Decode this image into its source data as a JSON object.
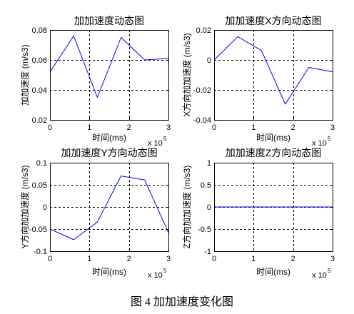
{
  "figure": {
    "caption": "图 4 加加速度变化图"
  },
  "colors": {
    "background": "#ffffff",
    "axes": "#000000",
    "grid": "#000000",
    "line": "#0000ff"
  },
  "chart_data": [
    {
      "type": "line",
      "title": "加加速度动态图",
      "xlabel": "时间(ms)",
      "ylabel": "加加速度 (m/s3)",
      "x_multiplier": {
        "base": "x 10",
        "exponent": "5"
      },
      "xlim": [
        0,
        300000
      ],
      "ylim": [
        0.02,
        0.08
      ],
      "xticks": [
        0,
        100000,
        200000,
        300000
      ],
      "xtick_labels": [
        "0",
        "1",
        "2",
        "3"
      ],
      "yticks": [
        0.02,
        0.04,
        0.06,
        0.08
      ],
      "ytick_labels": [
        "0.02",
        "0.04",
        "0.06",
        "0.08"
      ],
      "grid": true,
      "series": [
        {
          "x": [
            0,
            60000,
            120000,
            180000,
            240000,
            300000
          ],
          "y": [
            0.052,
            0.076,
            0.035,
            0.075,
            0.06,
            0.061
          ],
          "color": "#0000ff"
        }
      ]
    },
    {
      "type": "line",
      "title": "加加速度X方向动态图",
      "xlabel": "时间(ms)",
      "ylabel": "X方向加加速度 (m/s3)",
      "x_multiplier": {
        "base": "x 10",
        "exponent": "5"
      },
      "xlim": [
        0,
        300000
      ],
      "ylim": [
        -0.04,
        0.02
      ],
      "xticks": [
        0,
        100000,
        200000,
        300000
      ],
      "xtick_labels": [
        "0",
        "1",
        "2",
        "3"
      ],
      "yticks": [
        -0.04,
        -0.02,
        0,
        0.02
      ],
      "ytick_labels": [
        "-0.04",
        "-0.02",
        "0",
        "0.02"
      ],
      "grid": true,
      "series": [
        {
          "x": [
            0,
            60000,
            120000,
            180000,
            240000,
            300000
          ],
          "y": [
            0.0,
            0.0155,
            0.0063,
            -0.0295,
            -0.005,
            -0.008
          ],
          "color": "#0000ff"
        }
      ]
    },
    {
      "type": "line",
      "title": "加加速度Y方向动态图",
      "xlabel": "时间(ms)",
      "ylabel": "Y方向加加速度 (m/s3)",
      "x_multiplier": {
        "base": "x 10",
        "exponent": "5"
      },
      "xlim": [
        0,
        300000
      ],
      "ylim": [
        -0.1,
        0.1
      ],
      "xticks": [
        0,
        100000,
        200000,
        300000
      ],
      "xtick_labels": [
        "0",
        "1",
        "2",
        "3"
      ],
      "yticks": [
        -0.1,
        -0.05,
        0,
        0.05,
        0.1
      ],
      "ytick_labels": [
        "-0.1",
        "-0.05",
        "0",
        "0.05",
        "0.1"
      ],
      "grid": true,
      "series": [
        {
          "x": [
            0,
            60000,
            120000,
            180000,
            240000,
            300000
          ],
          "y": [
            -0.05,
            -0.074,
            -0.034,
            0.07,
            0.061,
            -0.058
          ],
          "color": "#0000ff"
        }
      ]
    },
    {
      "type": "line",
      "title": "加加速度Z方向动态图",
      "xlabel": "时间(ms)",
      "ylabel": "Z方向加加速度 (m/s3)",
      "x_multiplier": {
        "base": "x 10",
        "exponent": "5"
      },
      "xlim": [
        0,
        300000
      ],
      "ylim": [
        -1,
        1
      ],
      "xticks": [
        0,
        100000,
        200000,
        300000
      ],
      "xtick_labels": [
        "0",
        "1",
        "2",
        "3"
      ],
      "yticks": [
        -1,
        -0.5,
        0,
        0.5,
        1
      ],
      "ytick_labels": [
        "-1",
        "-0.5",
        "0",
        "0.5",
        "1"
      ],
      "grid": true,
      "series": [
        {
          "x": [
            0,
            60000,
            120000,
            180000,
            240000,
            300000
          ],
          "y": [
            0,
            0,
            0,
            0,
            0,
            0
          ],
          "color": "#0000ff"
        }
      ]
    }
  ]
}
